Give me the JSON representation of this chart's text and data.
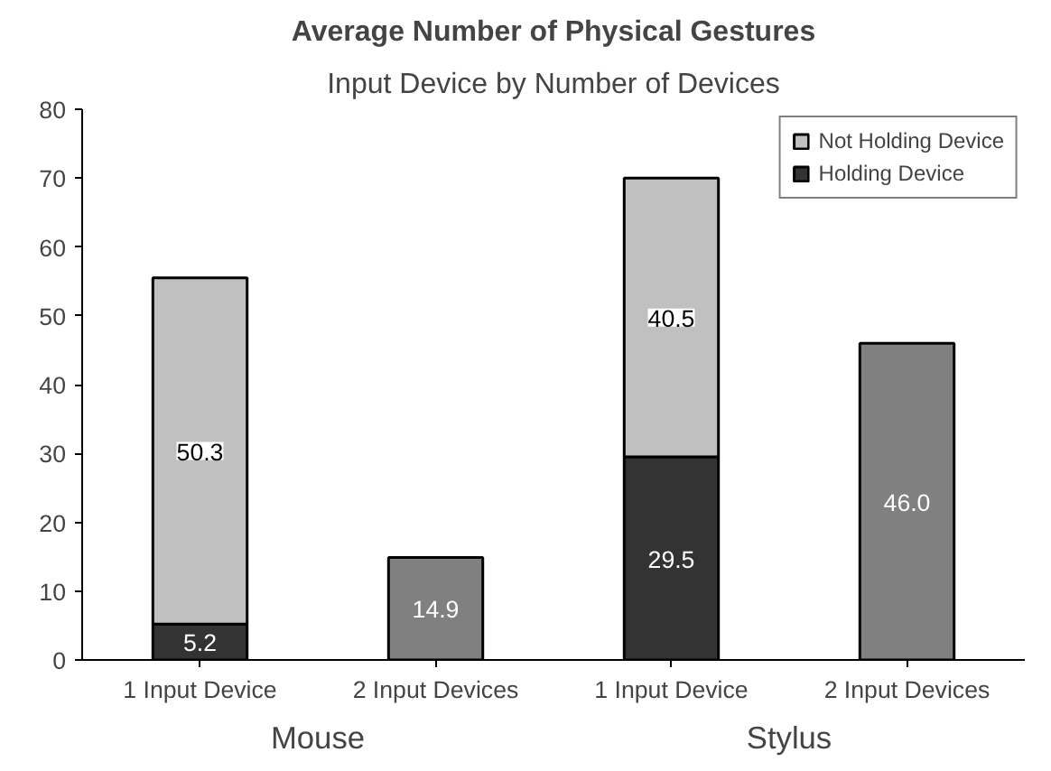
{
  "chart_data": {
    "type": "bar",
    "stacked": true,
    "title": "Average Number of Physical Gestures",
    "subtitle": "Input Device by Number of Devices",
    "categories": [
      "1 Input Device",
      "2 Input Devices",
      "1 Input Device",
      "2 Input Devices"
    ],
    "series": [
      {
        "name": "Holding Device",
        "color": "#333333",
        "values": [
          5.2,
          null,
          29.5,
          null
        ],
        "value_labels": [
          "5.2",
          null,
          "29.5",
          null
        ]
      },
      {
        "name": "Not Holding Device",
        "color": "#c0c0c0",
        "values": [
          50.3,
          null,
          40.5,
          null
        ],
        "value_labels": [
          "50.3",
          null,
          "40.5",
          null
        ]
      },
      {
        "color": "#808080",
        "values": [
          null,
          14.9,
          null,
          46.0
        ],
        "value_labels": [
          null,
          "14.9",
          null,
          "46.0"
        ]
      }
    ],
    "annotations": [
      "Mouse",
      "Stylus"
    ],
    "ylim": [
      0,
      80
    ],
    "yticks": [
      0,
      10,
      20,
      30,
      40,
      50,
      60,
      70,
      80
    ],
    "grid": false,
    "legend": "top right"
  }
}
